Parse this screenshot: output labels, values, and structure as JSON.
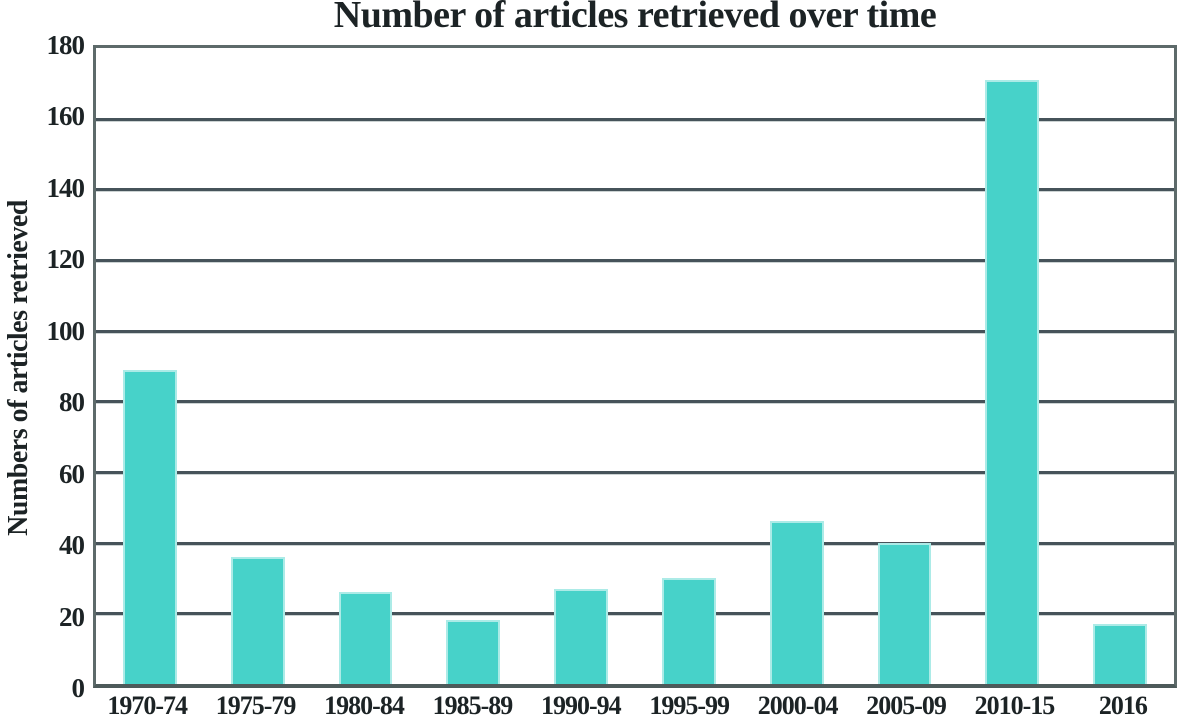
{
  "chart_data": {
    "type": "bar",
    "title": "Number of articles retrieved over time",
    "xlabel": "",
    "ylabel": "Numbers of articles retrieved",
    "categories": [
      "1970-74",
      "1975-79",
      "1980-84",
      "1985-89",
      "1990-94",
      "1995-99",
      "2000-04",
      "2005-09",
      "2010-15",
      "2016"
    ],
    "values": [
      89,
      36,
      26,
      18,
      27,
      30,
      46,
      40,
      171,
      17
    ],
    "ylim": [
      0,
      180
    ],
    "yticks": [
      0,
      20,
      40,
      60,
      80,
      100,
      120,
      140,
      160,
      180
    ],
    "grid": "horizontal",
    "legend": "none",
    "colors": {
      "bar_fill": "#47d2c9",
      "gridline": "#46535a",
      "plot_border": "#5d6a6a",
      "text": "#1c2325",
      "background": "#ffffff"
    }
  }
}
